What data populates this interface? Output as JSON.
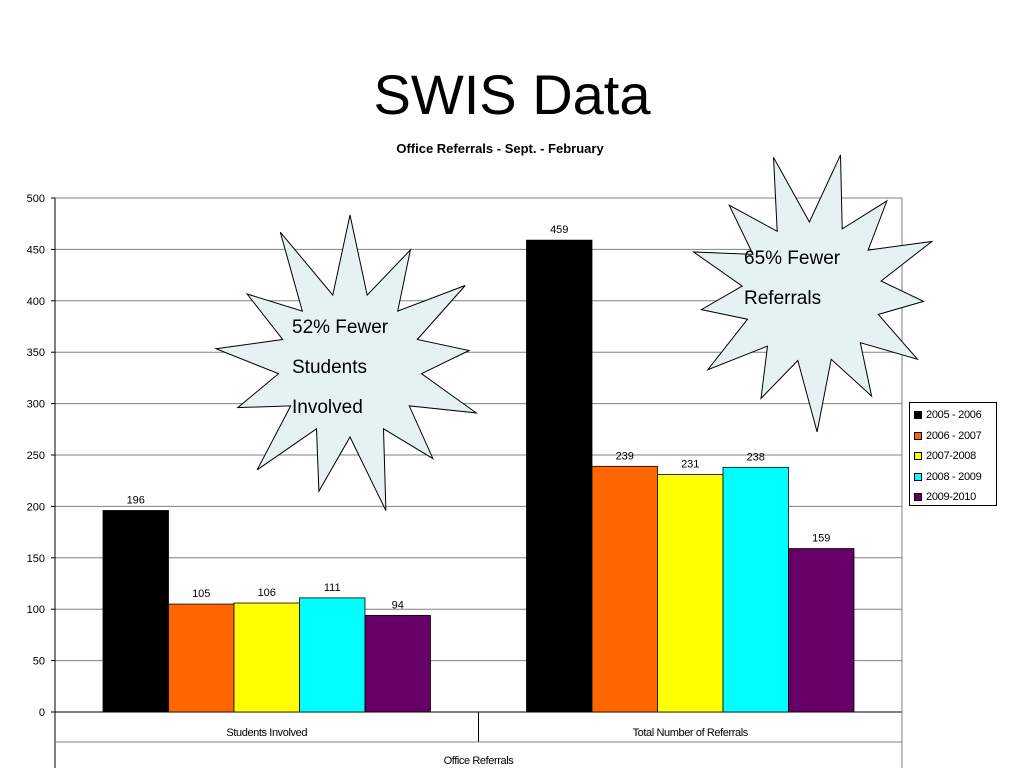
{
  "slide": {
    "title": "SWIS Data"
  },
  "callouts": [
    {
      "lines": [
        "52% Fewer",
        "Students",
        "Involved"
      ]
    },
    {
      "lines": [
        "65% Fewer",
        "Referrals"
      ]
    }
  ],
  "chart_data": {
    "type": "bar",
    "title": "Office Referrals - Sept. - February",
    "xlabel": "Office Referrals",
    "ylabel": "",
    "categories": [
      "Students Involved",
      "Total Number of Referrals"
    ],
    "ylim": [
      0,
      500
    ],
    "yticks": [
      0,
      50,
      100,
      150,
      200,
      250,
      300,
      350,
      400,
      450,
      500
    ],
    "grid": true,
    "legend_position": "right",
    "series": [
      {
        "name": "2005 - 2006",
        "color": "#000000",
        "values": [
          196,
          459
        ]
      },
      {
        "name": "2006 - 2007",
        "color": "#ff6600",
        "values": [
          105,
          239
        ]
      },
      {
        "name": "2007-2008",
        "color": "#ffff00",
        "values": [
          106,
          231
        ]
      },
      {
        "name": "2008 - 2009",
        "color": "#00ffff",
        "values": [
          111,
          238
        ]
      },
      {
        "name": "2009-2010",
        "color": "#660066",
        "values": [
          94,
          159
        ]
      }
    ]
  }
}
